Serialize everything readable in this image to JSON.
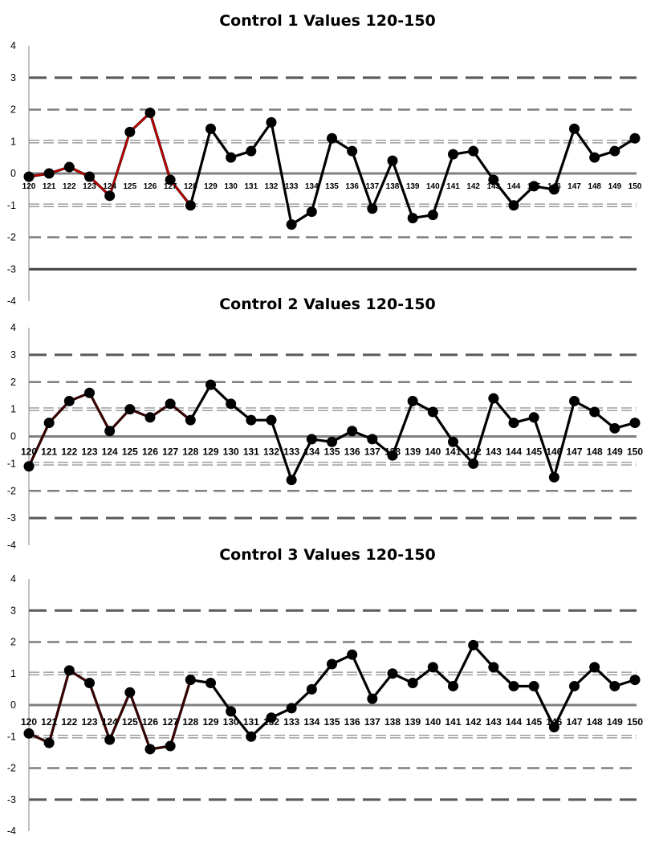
{
  "chart_data": [
    {
      "type": "line",
      "title": "Control 1 Values 120-150",
      "x": [
        120,
        121,
        122,
        123,
        124,
        125,
        126,
        127,
        128,
        129,
        130,
        131,
        132,
        133,
        134,
        135,
        136,
        137,
        138,
        139,
        140,
        141,
        142,
        143,
        144,
        145,
        146,
        147,
        148,
        149,
        150
      ],
      "values": [
        -0.1,
        0.0,
        0.2,
        -0.1,
        -0.7,
        1.3,
        1.9,
        -0.2,
        -1.0,
        1.4,
        0.5,
        0.7,
        1.6,
        -1.6,
        -1.2,
        1.1,
        0.7,
        -1.1,
        0.4,
        -1.4,
        -1.3,
        0.6,
        0.7,
        -0.2,
        -1.0,
        -0.4,
        -0.5,
        1.4,
        0.5,
        0.7,
        1.1
      ],
      "highlight_range": [
        120,
        128
      ],
      "ylim": [
        -4,
        4
      ],
      "yticks": [
        4,
        3,
        2,
        1,
        0,
        -1,
        -2,
        -3,
        -4
      ],
      "xlabel": "",
      "ylabel": "",
      "reference_lines": [
        {
          "y": 3,
          "style": "long-dash"
        },
        {
          "y": 2,
          "style": "dash"
        },
        {
          "y": 1,
          "style": "double-dash"
        },
        {
          "y": 0,
          "style": "solid"
        },
        {
          "y": -1,
          "style": "double-dash"
        },
        {
          "y": -2,
          "style": "dash"
        },
        {
          "y": -3,
          "style": "solid-thick"
        }
      ],
      "colors": {
        "line": "#000000",
        "highlight": "#c00000",
        "marker": "#000000"
      }
    },
    {
      "type": "line",
      "title": "Control 2 Values 120-150",
      "x": [
        120,
        121,
        122,
        123,
        124,
        125,
        126,
        127,
        128,
        129,
        130,
        131,
        132,
        133,
        134,
        135,
        136,
        137,
        138,
        139,
        140,
        141,
        142,
        143,
        144,
        145,
        146,
        147,
        148,
        149,
        150
      ],
      "values": [
        -1.1,
        0.5,
        1.3,
        1.6,
        0.2,
        1.0,
        0.7,
        1.2,
        0.6,
        1.9,
        1.2,
        0.6,
        0.6,
        -1.6,
        -0.1,
        -0.2,
        0.2,
        -0.1,
        -0.7,
        1.3,
        0.9,
        -0.2,
        -1.0,
        1.4,
        0.5,
        0.7,
        -1.5,
        1.3,
        0.9,
        0.3,
        0.5
      ],
      "highlight_range": [
        120,
        128
      ],
      "ylim": [
        -4,
        4
      ],
      "yticks": [
        4,
        3,
        2,
        1,
        0,
        -1,
        -2,
        -3,
        -4
      ],
      "xlabel": "",
      "ylabel": "",
      "reference_lines": [
        {
          "y": 3,
          "style": "long-dash"
        },
        {
          "y": 2,
          "style": "dash"
        },
        {
          "y": 1,
          "style": "double-dash"
        },
        {
          "y": 0,
          "style": "solid"
        },
        {
          "y": -1,
          "style": "double-dash"
        },
        {
          "y": -2,
          "style": "dash"
        },
        {
          "y": -3,
          "style": "long-dash"
        }
      ],
      "colors": {
        "line": "#000000",
        "highlight": "#400000",
        "marker": "#000000"
      }
    },
    {
      "type": "line",
      "title": "Control 3 Values 120-150",
      "x": [
        120,
        121,
        122,
        123,
        124,
        125,
        126,
        127,
        128,
        129,
        130,
        131,
        132,
        133,
        134,
        135,
        136,
        137,
        138,
        139,
        140,
        141,
        142,
        143,
        144,
        145,
        146,
        147,
        148,
        149,
        150
      ],
      "values": [
        -0.9,
        -1.2,
        1.1,
        0.7,
        -1.1,
        0.4,
        -1.4,
        -1.3,
        0.8,
        0.7,
        -0.2,
        -1.0,
        -0.4,
        -0.1,
        0.5,
        1.3,
        1.6,
        0.2,
        1.0,
        0.7,
        1.2,
        0.6,
        1.9,
        1.2,
        0.6,
        0.6,
        -0.7,
        0.6,
        1.2,
        0.6,
        0.8
      ],
      "highlight_range": [
        120,
        128
      ],
      "ylim": [
        -4,
        4
      ],
      "yticks": [
        4,
        3,
        2,
        1,
        0,
        -1,
        -2,
        -3,
        -4
      ],
      "xlabel": "",
      "ylabel": "",
      "reference_lines": [
        {
          "y": 3,
          "style": "long-dash"
        },
        {
          "y": 2,
          "style": "dash"
        },
        {
          "y": 1,
          "style": "double-dash"
        },
        {
          "y": 0,
          "style": "solid"
        },
        {
          "y": -1,
          "style": "double-dash"
        },
        {
          "y": -2,
          "style": "dash"
        },
        {
          "y": -3,
          "style": "long-dash"
        }
      ],
      "colors": {
        "line": "#000000",
        "highlight": "#400000",
        "marker": "#000000"
      }
    }
  ]
}
